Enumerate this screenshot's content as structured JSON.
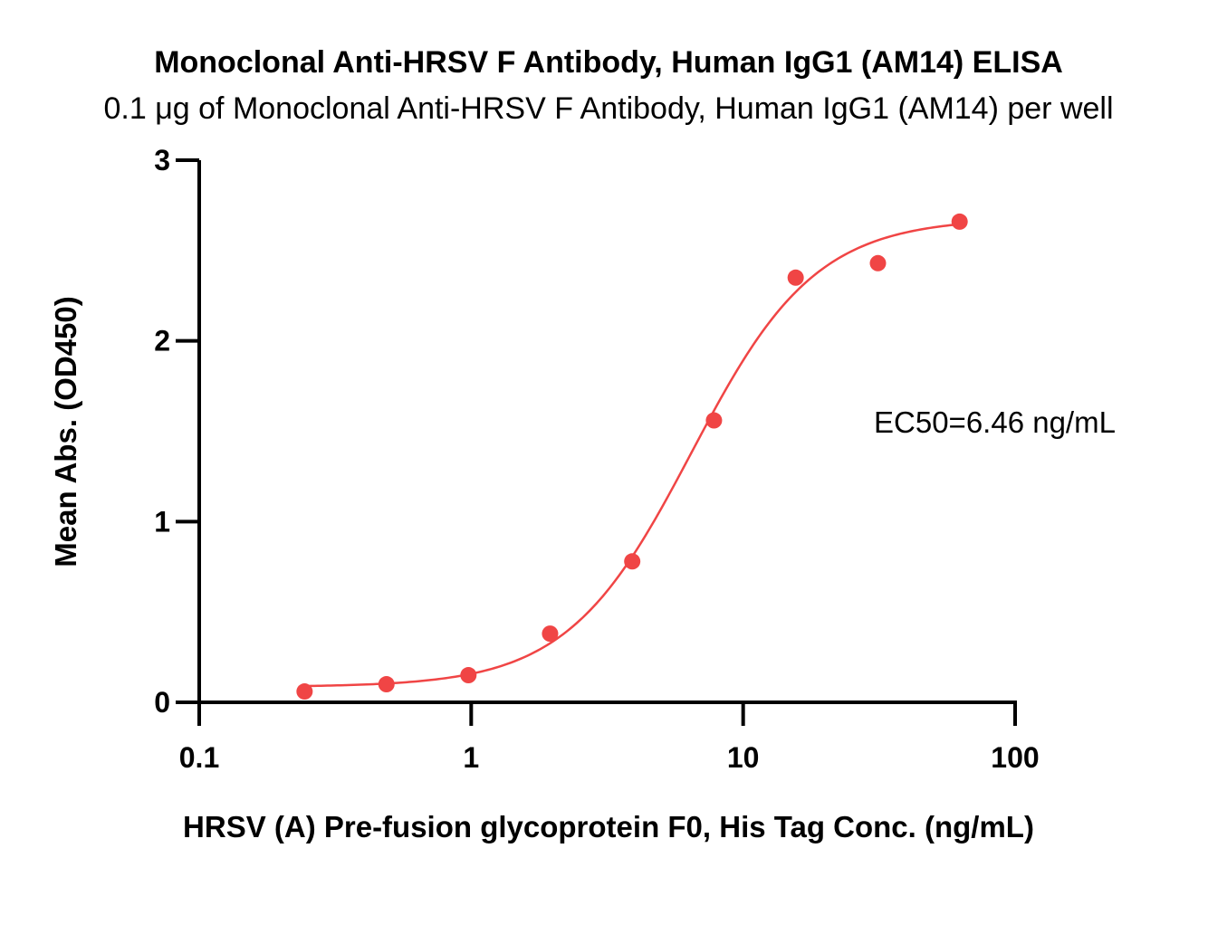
{
  "chart_data": {
    "type": "scatter",
    "title": "Monoclonal Anti-HRSV F Antibody, Human IgG1 (AM14) ELISA",
    "subtitle": "0.1 μg of Monoclonal Anti-HRSV F Antibody, Human IgG1 (AM14) per well",
    "xlabel": "HRSV (A) Pre-fusion glycoprotein F0, His Tag Conc. (ng/mL)",
    "ylabel": "Mean Abs. (OD450)",
    "xscale": "log",
    "xlim": [
      0.1,
      100
    ],
    "ylim": [
      0,
      3
    ],
    "x_ticks": [
      0.1,
      1,
      10,
      100
    ],
    "x_tick_labels": [
      "0.1",
      "1",
      "10",
      "100"
    ],
    "y_ticks": [
      0,
      1,
      2,
      3
    ],
    "y_tick_labels": [
      "0",
      "1",
      "2",
      "3"
    ],
    "grid": false,
    "color": "#f04545",
    "annotation": "EC50=6.46 ng/mL",
    "series": [
      {
        "x": [
          0.244,
          0.488,
          0.977,
          1.95,
          3.91,
          7.81,
          15.6,
          31.3,
          62.5
        ],
        "y": [
          0.06,
          0.1,
          0.15,
          0.38,
          0.78,
          1.56,
          2.35,
          2.43,
          2.66
        ]
      }
    ],
    "fit_curve": {
      "model": "4PL",
      "bottom": 0.085,
      "top": 2.68,
      "ec50": 6.46,
      "hill": 1.9
    }
  }
}
